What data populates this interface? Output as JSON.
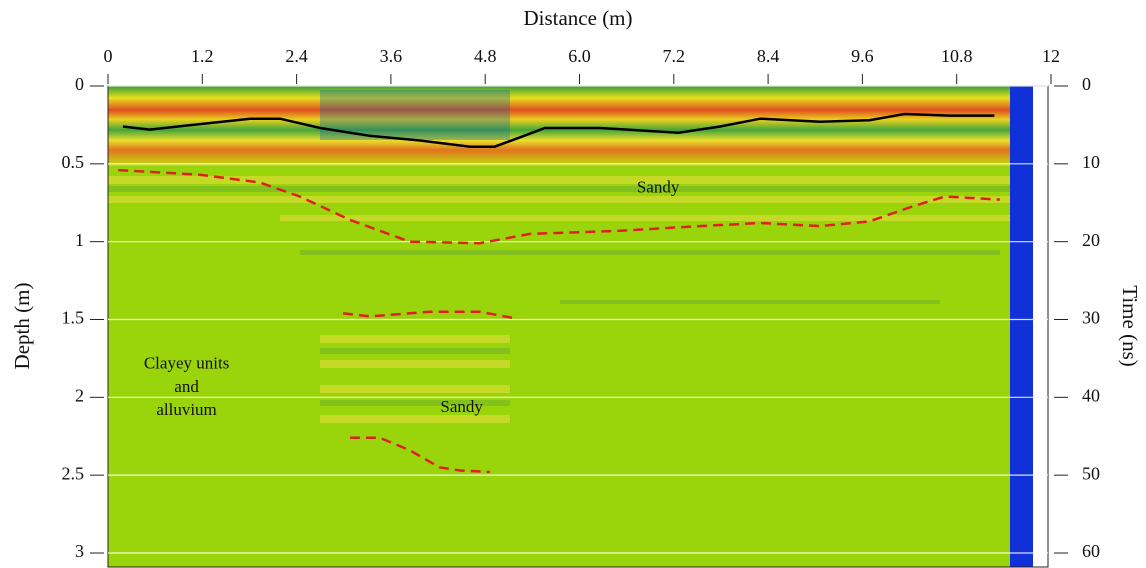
{
  "chart_data": {
    "type": "radargram",
    "xlabel": "Distance (m)",
    "ylabel": "Depth (m)",
    "y2label": "Time (ns)",
    "xlim": [
      0,
      12
    ],
    "xticks": [
      0,
      1.2,
      2.4,
      3.6,
      4.8,
      {
        "value": 6,
        "label": "6.0"
      },
      7.2,
      8.4,
      9.6,
      10.8,
      12
    ],
    "ylim": [
      0,
      3.09
    ],
    "yticks": [
      0,
      0.5,
      1,
      1.5,
      2,
      2.5,
      3
    ],
    "y2lim": [
      0,
      61.8
    ],
    "y2ticks": [
      0,
      10,
      20,
      30,
      40,
      50,
      60
    ],
    "grid": true,
    "lines": [
      {
        "color": "#000000",
        "style": "solid",
        "x": [
          0.19,
          0.53,
          1.17,
          1.81,
          2.19,
          2.7,
          3.33,
          3.97,
          4.61,
          4.92,
          5.24,
          5.56,
          6.26,
          7.26,
          7.79,
          8.3,
          9.06,
          9.69,
          10.14,
          10.71,
          11.28
        ],
        "y": [
          0.26,
          0.28,
          0.245,
          0.21,
          0.21,
          0.27,
          0.32,
          0.35,
          0.39,
          0.39,
          0.33,
          0.27,
          0.27,
          0.3,
          0.26,
          0.21,
          0.23,
          0.22,
          0.18,
          0.19,
          0.19
        ]
      },
      {
        "color": "#e02020",
        "style": "dashed",
        "x": [
          0.13,
          1.17,
          1.93,
          2.44,
          3.08,
          3.84,
          4.73,
          5.37,
          6.51,
          7.53,
          8.3,
          9.06,
          9.69,
          10.2,
          10.65,
          11.35
        ],
        "y": [
          0.54,
          0.57,
          0.62,
          0.71,
          0.86,
          1.0,
          1.01,
          0.95,
          0.93,
          0.9,
          0.88,
          0.9,
          0.87,
          0.78,
          0.71,
          0.73
        ]
      },
      {
        "color": "#e02020",
        "style": "dashed",
        "x": [
          2.99,
          3.33,
          4.1,
          4.73,
          5.15
        ],
        "y": [
          1.46,
          1.48,
          1.45,
          1.45,
          1.49
        ]
      },
      {
        "color": "#e02020",
        "style": "dashed",
        "x": [
          3.08,
          3.46,
          3.84,
          4.22,
          4.48,
          4.86
        ],
        "y": [
          2.26,
          2.26,
          2.34,
          2.45,
          2.47,
          2.48
        ]
      }
    ],
    "annotations": [
      {
        "text": "Sandy",
        "x": 7.0,
        "y": 0.66
      },
      {
        "text": "Sandy",
        "x": 4.5,
        "y": 2.07
      },
      {
        "text": "Clayey units",
        "x": 1.0,
        "y": 1.79
      },
      {
        "text": "and",
        "x": 1.0,
        "y": 1.94
      },
      {
        "text": "alluvium",
        "x": 1.0,
        "y": 2.09
      }
    ]
  }
}
